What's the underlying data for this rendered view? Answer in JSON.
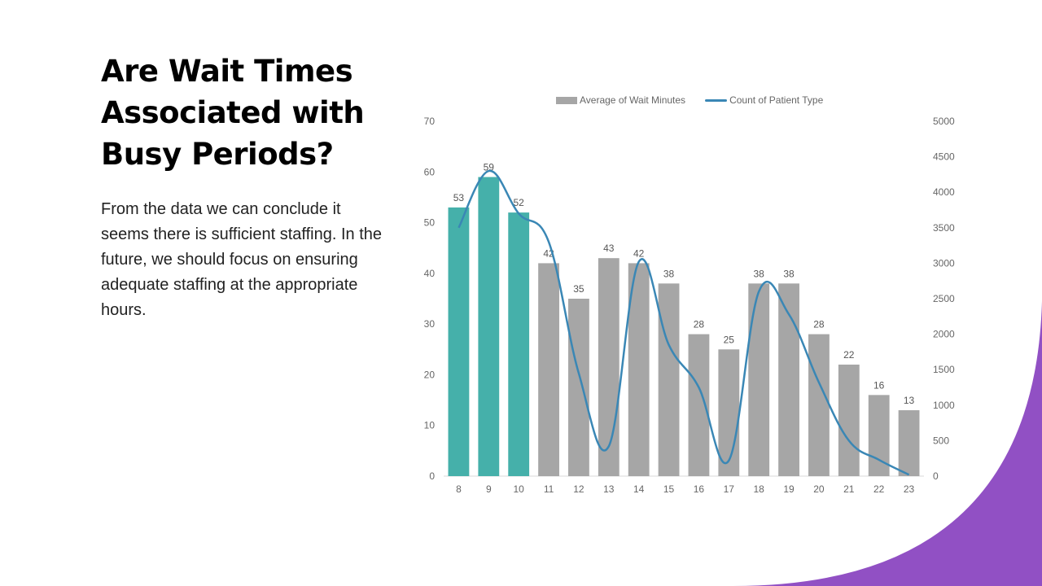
{
  "slide": {
    "title": "Are Wait Times Associated with Busy Periods?",
    "body": "From the data  we can conclude it seems there is sufficient staffing.  In the future, we should focus on ensuring adequate staffing at the appropriate hours."
  },
  "colors": {
    "accent_bar": "#45b0aa",
    "gray_bar": "#a6a6a6",
    "line": "#3a87b5",
    "purple": "#9150c4"
  },
  "chart_data": {
    "type": "bar",
    "categories": [
      "8",
      "9",
      "10",
      "11",
      "12",
      "13",
      "14",
      "15",
      "16",
      "17",
      "18",
      "19",
      "20",
      "21",
      "22",
      "23"
    ],
    "series": [
      {
        "name": "Average of Wait Minutes",
        "type": "bar",
        "axis": "left",
        "values": [
          53,
          59,
          52,
          42,
          35,
          43,
          42,
          38,
          28,
          25,
          38,
          38,
          28,
          22,
          16,
          13
        ],
        "data_labels": [
          "53",
          "59",
          "52",
          "42",
          "35",
          "43",
          "42",
          "38",
          "28",
          "25",
          "38",
          "38",
          "28",
          "22",
          "16",
          "13"
        ],
        "highlighted_categories": [
          "8",
          "9",
          "10"
        ]
      },
      {
        "name": "Count of Patient Type",
        "type": "line",
        "axis": "right",
        "values": [
          3500,
          4300,
          3700,
          3300,
          1450,
          420,
          3020,
          1850,
          1250,
          220,
          2600,
          2280,
          1320,
          500,
          230,
          20
        ]
      }
    ],
    "ylim_left": [
      0,
      70
    ],
    "yticks_left": [
      0,
      10,
      20,
      30,
      40,
      50,
      60,
      70
    ],
    "ylim_right": [
      0,
      5000
    ],
    "yticks_right": [
      0,
      500,
      1000,
      1500,
      2000,
      2500,
      3000,
      3500,
      4000,
      4500,
      5000
    ],
    "legend_position": "top",
    "grid": false
  }
}
